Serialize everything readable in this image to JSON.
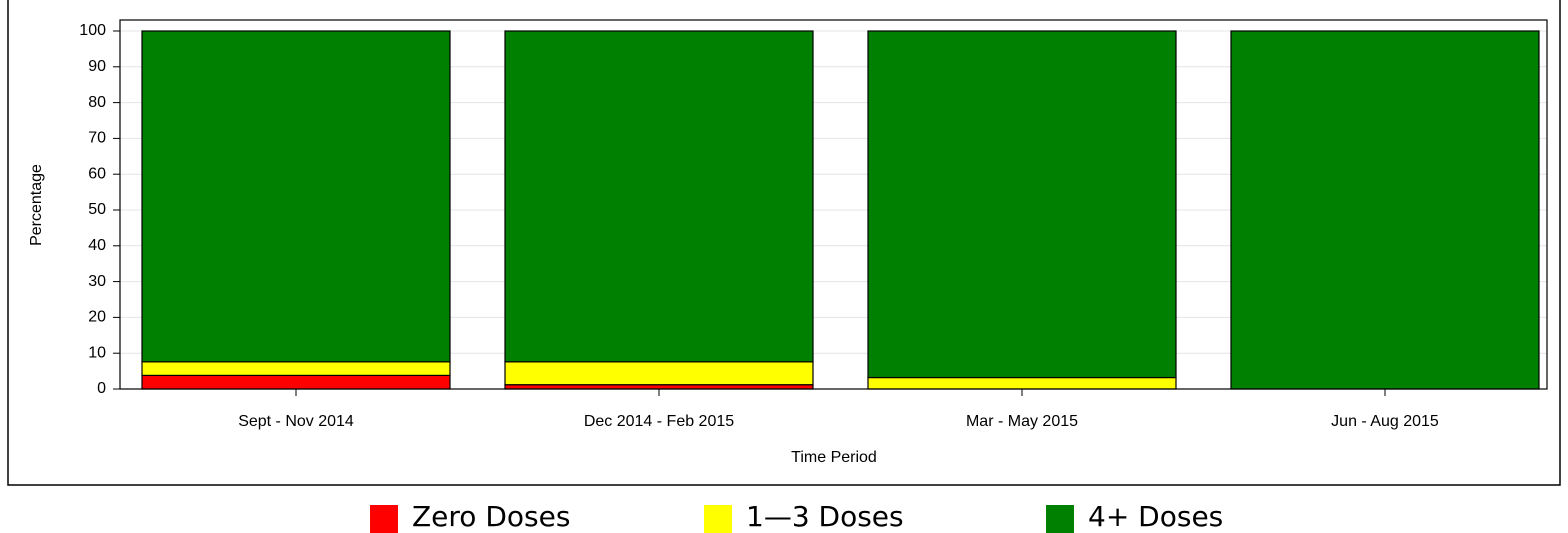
{
  "chart_data": {
    "type": "stacked_bar",
    "x_label": "Time Period",
    "y_label": "Percentage",
    "categories": [
      "Sept - Nov 2014",
      "Dec 2014 - Feb 2015",
      "Mar - May 2015",
      "Jun - Aug 2015"
    ],
    "series": [
      {
        "name": "Zero Doses",
        "color": "#ff0000",
        "values": [
          3.8,
          1.2,
          0,
          0
        ]
      },
      {
        "name": "1—3 Doses",
        "color": "#ffff00",
        "values": [
          3.8,
          6.4,
          3.2,
          0
        ]
      },
      {
        "name": "4+ Doses",
        "color": "#008000",
        "values": [
          92.4,
          92.4,
          96.8,
          100
        ]
      }
    ],
    "ylim": [
      0,
      100
    ],
    "yticks": [
      0,
      10,
      20,
      30,
      40,
      50,
      60,
      70,
      80,
      90,
      100
    ],
    "grid": true
  }
}
